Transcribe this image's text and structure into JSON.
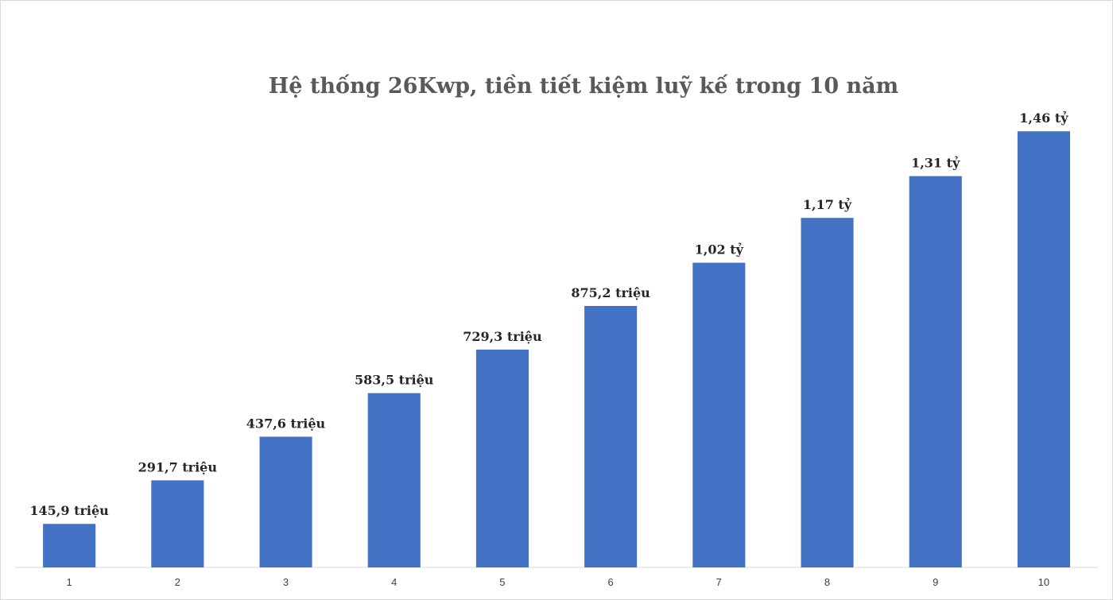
{
  "chart_data": {
    "type": "bar",
    "title": "Hệ thống 26Kwp, tiền tiết kiệm luỹ kế trong 10 năm",
    "xlabel": "",
    "ylabel": "",
    "categories": [
      "1",
      "2",
      "3",
      "4",
      "5",
      "6",
      "7",
      "8",
      "9",
      "10"
    ],
    "values": [
      145.9,
      291.7,
      437.6,
      583.5,
      729.3,
      875.2,
      1020,
      1170,
      1310,
      1460
    ],
    "value_unit": "triệu",
    "data_labels": [
      "145,9 triệu",
      "291,7 triệu",
      "437,6 triệu",
      "583,5 triệu",
      "729,3 triệu",
      "875,2 triệu",
      "1,02 tỷ",
      "1,17 tỷ",
      "1,31 tỷ",
      "1,46 tỷ"
    ],
    "ylim": [
      0,
      1700
    ],
    "grid": false,
    "legend": "none",
    "colors": {
      "bar": "#4472c4",
      "axis": "#d9d9d9",
      "title": "#595959",
      "label": "#262626"
    }
  }
}
